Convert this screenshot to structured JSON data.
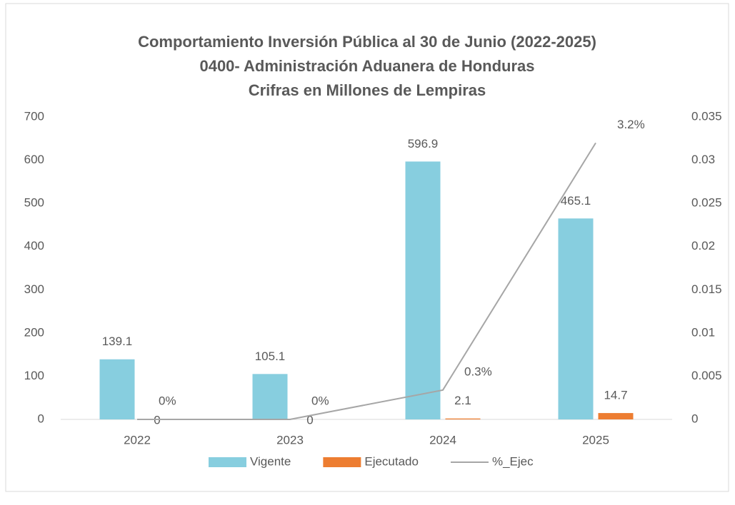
{
  "chart_data": {
    "type": "bar",
    "title": [
      "Comportamiento Inversión Pública al 30 de Junio (2022-2025)",
      "0400- Administración Aduanera de Honduras",
      "Crifras en Millones de Lempiras"
    ],
    "categories": [
      "2022",
      "2023",
      "2024",
      "2025"
    ],
    "series": [
      {
        "name": "Vigente",
        "color": "#87cedf",
        "values": [
          139.1,
          105.1,
          596.9,
          465.1
        ]
      },
      {
        "name": "Ejecutado",
        "color": "#ed7d31",
        "values": [
          0,
          0,
          2.1,
          14.7
        ]
      },
      {
        "name": "%_Ejec",
        "color": "#a6a6a6",
        "type": "line",
        "axis": "y2",
        "values": [
          0,
          0,
          0.0034,
          0.032
        ],
        "value_labels": [
          "0%",
          "0%",
          "0.3%",
          "3.2%"
        ]
      }
    ],
    "ylim": [
      0,
      700
    ],
    "yticks": [
      0,
      100,
      200,
      300,
      400,
      500,
      600,
      700
    ],
    "y2lim": [
      0,
      0.035
    ],
    "y2ticks": [
      0,
      0.005,
      0.01,
      0.015,
      0.02,
      0.025,
      0.03,
      0.035
    ],
    "legend": "bottom"
  }
}
